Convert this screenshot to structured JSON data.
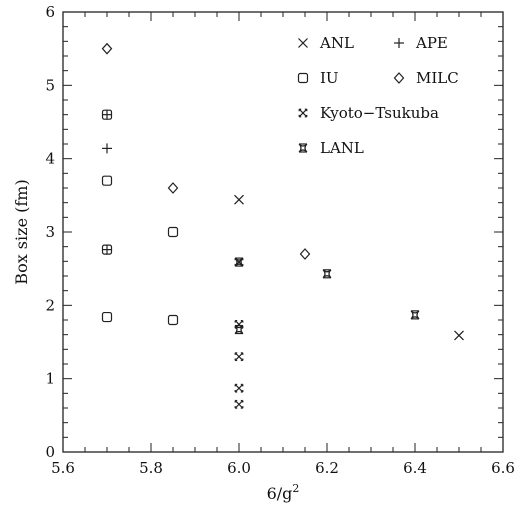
{
  "chart_data": {
    "type": "scatter",
    "xlabel": "6/g",
    "xlabel_sup": "2",
    "ylabel": "Box size (fm)",
    "xlim": [
      5.6,
      6.6
    ],
    "ylim": [
      0,
      6
    ],
    "x_ticks": [
      "5.6",
      "5.8",
      "6.0",
      "6.2",
      "6.4",
      "6.6"
    ],
    "y_ticks": [
      "0",
      "1",
      "2",
      "3",
      "4",
      "5",
      "6"
    ],
    "legend_placement": "top-right",
    "series": [
      {
        "name": "ANL",
        "marker": "x",
        "points": [
          [
            6.0,
            3.44
          ],
          [
            6.5,
            1.59
          ]
        ]
      },
      {
        "name": "APE",
        "marker": "plus",
        "points": [
          [
            5.7,
            4.14
          ],
          [
            5.7,
            4.6
          ],
          [
            5.7,
            2.76
          ]
        ]
      },
      {
        "name": "IU",
        "marker": "square",
        "points": [
          [
            5.7,
            3.7
          ],
          [
            5.7,
            4.6
          ],
          [
            5.7,
            2.76
          ],
          [
            5.7,
            1.84
          ],
          [
            5.85,
            3.0
          ],
          [
            5.85,
            1.8
          ]
        ]
      },
      {
        "name": "MILC",
        "marker": "diamond",
        "points": [
          [
            5.7,
            5.5
          ],
          [
            5.85,
            3.6
          ],
          [
            6.15,
            2.7
          ]
        ]
      },
      {
        "name": "Kyoto−Tsukuba",
        "marker": "boxed-x",
        "points": [
          [
            6.0,
            2.59
          ],
          [
            6.0,
            1.74
          ],
          [
            6.0,
            1.3
          ],
          [
            6.0,
            0.87
          ],
          [
            6.0,
            0.65
          ]
        ]
      },
      {
        "name": "LANL",
        "marker": "star",
        "points": [
          [
            6.0,
            2.59
          ],
          [
            6.0,
            1.67
          ],
          [
            6.2,
            2.43
          ],
          [
            6.4,
            1.87
          ]
        ]
      }
    ]
  }
}
